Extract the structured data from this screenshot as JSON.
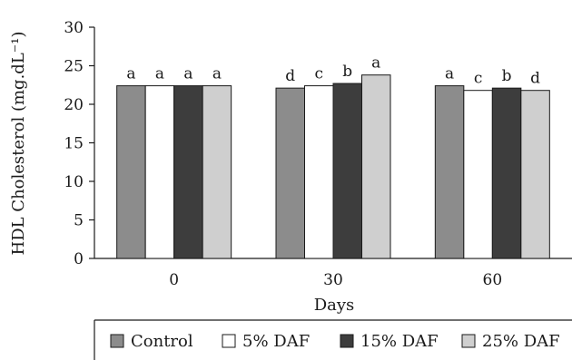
{
  "chart_data": {
    "type": "bar",
    "title": "",
    "xlabel": "Days",
    "ylabel": "HDL Cholesterol (mg.dL⁻¹)",
    "ylim": [
      0,
      30
    ],
    "yticks": [
      0,
      5,
      10,
      15,
      20,
      25,
      30
    ],
    "categories": [
      "0",
      "30",
      "60"
    ],
    "grid": false,
    "legend_position": "bottom",
    "series": [
      {
        "name": "Control",
        "color": "#8c8c8c",
        "values": [
          22.4,
          22.1,
          22.4
        ],
        "labels": [
          "a",
          "d",
          "a"
        ]
      },
      {
        "name": "5% DAF",
        "color": "#ffffff",
        "values": [
          22.4,
          22.4,
          21.8
        ],
        "labels": [
          "a",
          "c",
          "c"
        ]
      },
      {
        "name": "15% DAF",
        "color": "#3d3d3d",
        "values": [
          22.4,
          22.7,
          22.1
        ],
        "labels": [
          "a",
          "b",
          "b"
        ]
      },
      {
        "name": "25% DAF",
        "color": "#cfcfcf",
        "values": [
          22.4,
          23.8,
          21.8
        ],
        "labels": [
          "a",
          "a",
          "d"
        ]
      }
    ]
  }
}
